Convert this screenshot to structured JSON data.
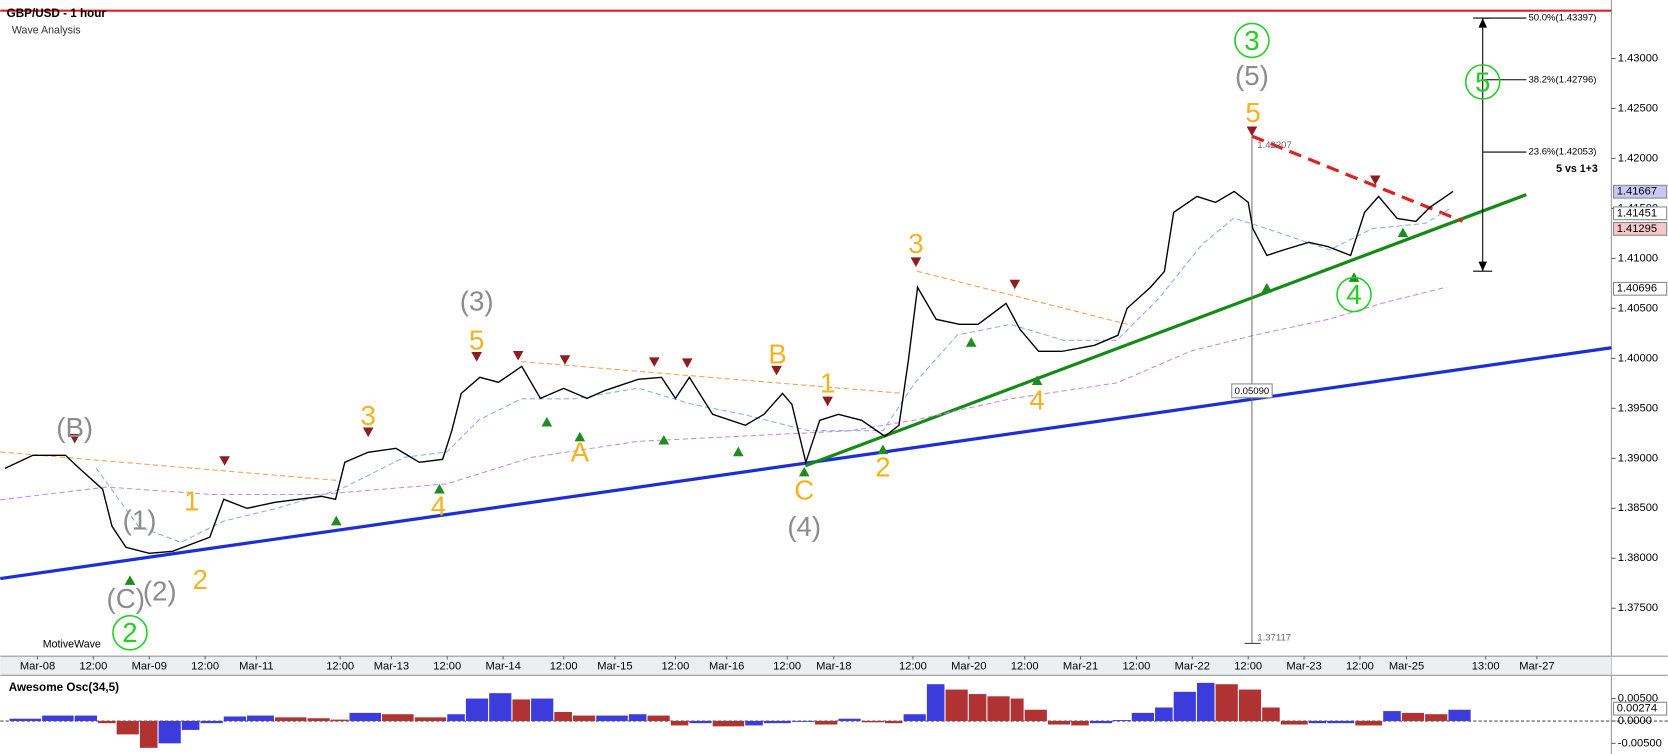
{
  "chart_data": [
    {
      "type": "line",
      "title": "GBP/USD - 1 hour",
      "subtitle": "Wave Analysis",
      "color": "#000000",
      "x": [
        1,
        7,
        14,
        17,
        22,
        24,
        27,
        32,
        37,
        41,
        45,
        48,
        53,
        59,
        69,
        72,
        74,
        79,
        85,
        90,
        95,
        97,
        99,
        103,
        107,
        112,
        116,
        121,
        126,
        130,
        137,
        142,
        145,
        148,
        153,
        160,
        164,
        168,
        170,
        173,
        176,
        180,
        185,
        190,
        193,
        195,
        197,
        201,
        206,
        210,
        216,
        219,
        223,
        228,
        235,
        240,
        242,
        247,
        250,
        252,
        257,
        261,
        265,
        268,
        269,
        272,
        276,
        281,
        285,
        290,
        293,
        296,
        300,
        304,
        307,
        312
      ],
      "values": [
        1.389,
        1.3903,
        1.3903,
        1.389,
        1.3869,
        1.3832,
        1.3811,
        1.3805,
        1.3807,
        1.3814,
        1.3821,
        1.3859,
        1.385,
        1.3856,
        1.3862,
        1.3859,
        1.3896,
        1.3906,
        1.391,
        1.3896,
        1.3899,
        1.3928,
        1.3965,
        1.3981,
        1.3976,
        1.3992,
        1.396,
        1.397,
        1.396,
        1.3968,
        1.3979,
        1.3981,
        1.396,
        1.3981,
        1.3944,
        1.3933,
        1.3944,
        1.3965,
        1.3954,
        1.3896,
        1.3938,
        1.3944,
        1.3938,
        1.3922,
        1.3933,
        1.3997,
        1.4071,
        1.4039,
        1.4034,
        1.4034,
        1.4055,
        1.4029,
        1.4007,
        1.4007,
        1.4013,
        1.4023,
        1.405,
        1.4071,
        1.4087,
        1.4146,
        1.4162,
        1.4156,
        1.4167,
        1.4156,
        1.413,
        1.4103,
        1.4109,
        1.4116,
        1.4112,
        1.4103,
        1.4146,
        1.4162,
        1.414,
        1.4137,
        1.4151,
        1.4167
      ],
      "xlim": [
        0,
        346
      ],
      "ylim": [
        1.37042,
        1.43585
      ],
      "xticks": [
        {
          "value": 8,
          "label": "Mar-08"
        },
        {
          "value": 20,
          "label": "12:00"
        },
        {
          "value": 32,
          "label": "Mar-09"
        },
        {
          "value": 44,
          "label": "12:00"
        },
        {
          "value": 55,
          "label": "Mar-11"
        },
        {
          "value": 73,
          "label": "12:00"
        },
        {
          "value": 84,
          "label": "Mar-13"
        },
        {
          "value": 96,
          "label": "12:00"
        },
        {
          "value": 108,
          "label": "Mar-14"
        },
        {
          "value": 121,
          "label": "12:00"
        },
        {
          "value": 132,
          "label": "Mar-15"
        },
        {
          "value": 145,
          "label": "12:00"
        },
        {
          "value": 156,
          "label": "Mar-16"
        },
        {
          "value": 169,
          "label": "12:00"
        },
        {
          "value": 179,
          "label": "Mar-18"
        },
        {
          "value": 196,
          "label": "12:00"
        },
        {
          "value": 208,
          "label": "Mar-20"
        },
        {
          "value": 220,
          "label": "12:00"
        },
        {
          "value": 232,
          "label": "Mar-21"
        },
        {
          "value": 244,
          "label": "12:00"
        },
        {
          "value": 256,
          "label": "Mar-22"
        },
        {
          "value": 268,
          "label": "12:00"
        },
        {
          "value": 280,
          "label": "Mar-23"
        },
        {
          "value": 292,
          "label": "12:00"
        },
        {
          "value": 302,
          "label": "Mar-25"
        },
        {
          "value": 319,
          "label": "13:00"
        },
        {
          "value": 330,
          "label": "Mar-27"
        }
      ],
      "yticks": [
        {
          "value": 1.375,
          "label": "1.37500"
        },
        {
          "value": 1.38,
          "label": "1.38000"
        },
        {
          "value": 1.385,
          "label": "1.38500"
        },
        {
          "value": 1.39,
          "label": "1.39000"
        },
        {
          "value": 1.395,
          "label": "1.39500"
        },
        {
          "value": 1.4,
          "label": "1.40000"
        },
        {
          "value": 1.405,
          "label": "1.40500"
        },
        {
          "value": 1.41,
          "label": "1.41000"
        },
        {
          "value": 1.415,
          "label": "1.41500"
        },
        {
          "value": 1.42,
          "label": "1.42000"
        },
        {
          "value": 1.425,
          "label": "1.42500"
        },
        {
          "value": 1.43,
          "label": "1.43000"
        }
      ],
      "grid": false,
      "price_markers": [
        {
          "value": 1.41667,
          "label": "1.41667",
          "color": "#c8c8f4"
        },
        {
          "value": 1.41451,
          "label": "1.41451",
          "color": "#ffffff"
        },
        {
          "value": 1.41295,
          "label": "1.41295",
          "color": "#f6c8c8"
        },
        {
          "value": 1.40696,
          "label": "1.40696",
          "color": "#ffffff"
        }
      ]
    },
    {
      "type": "bar",
      "title": "Awesome Osc(34,5)",
      "up_color": "#3c3cdc",
      "down_color": "#b03232",
      "x": [
        2,
        9,
        16,
        21,
        25,
        30,
        34,
        39,
        43,
        48,
        53,
        59,
        66,
        71,
        75,
        82,
        89,
        96,
        100,
        105,
        110,
        114,
        119,
        123,
        128,
        135,
        139,
        144,
        148,
        153,
        160,
        164,
        170,
        175,
        180,
        185,
        190,
        194,
        199,
        203,
        208,
        212,
        217,
        220,
        225,
        230,
        234,
        239,
        243,
        248,
        252,
        257,
        261,
        266,
        271,
        275,
        281,
        285,
        291,
        297,
        301,
        306,
        311
      ],
      "values": [
        0.0005,
        0.0012,
        0.0012,
        -0.0005,
        -0.003,
        -0.006,
        -0.005,
        -0.002,
        -0.0005,
        0.001,
        0.0012,
        0.0008,
        0.0006,
        0.0003,
        0.0018,
        0.0015,
        0.0008,
        0.0015,
        0.005,
        0.0062,
        0.0048,
        0.005,
        0.002,
        0.0012,
        0.0012,
        0.0015,
        0.0012,
        -0.001,
        -0.0005,
        -0.0012,
        -0.001,
        -0.0005,
        -0.0002,
        -0.0008,
        0.0005,
        -0.0003,
        -0.0005,
        0.0015,
        0.0082,
        0.007,
        0.006,
        0.0055,
        0.005,
        0.0025,
        -0.0008,
        -0.001,
        -0.0005,
        0.0002,
        0.0018,
        0.003,
        0.0065,
        0.0085,
        0.0082,
        0.007,
        0.003,
        -0.0008,
        -0.0005,
        -0.0005,
        -0.001,
        0.0022,
        0.0018,
        0.0015,
        0.0025
      ],
      "xlim": [
        0,
        346
      ],
      "ylim": [
        -0.0069,
        0.009
      ],
      "yticks": [
        {
          "value": 0.005,
          "label": "0.00500"
        },
        {
          "value": 0,
          "label": "0.0000"
        },
        {
          "value": -0.005,
          "label": "-0.00500"
        }
      ],
      "markers": [
        {
          "value": 0.00274,
          "label": "0.00274"
        }
      ]
    }
  ],
  "annotations": {
    "waves": [
      "(B)",
      "(1)",
      "1",
      "(C)",
      "(2)",
      "2",
      "2",
      "3",
      "4",
      "(3)",
      "5",
      "A",
      "B",
      "1",
      "C",
      "(4)",
      "2",
      "3",
      "4",
      "3",
      "(5)",
      "5",
      "4",
      "5"
    ],
    "fib": [
      "50.0%(1.43397)",
      "38.2%(1.42796)",
      "23.6%(1.42053)"
    ],
    "ratio_note": "5 vs 1+3",
    "high": "1.42207",
    "range": "0.05090",
    "low": "1.37117",
    "brand": "MotiveWave"
  }
}
